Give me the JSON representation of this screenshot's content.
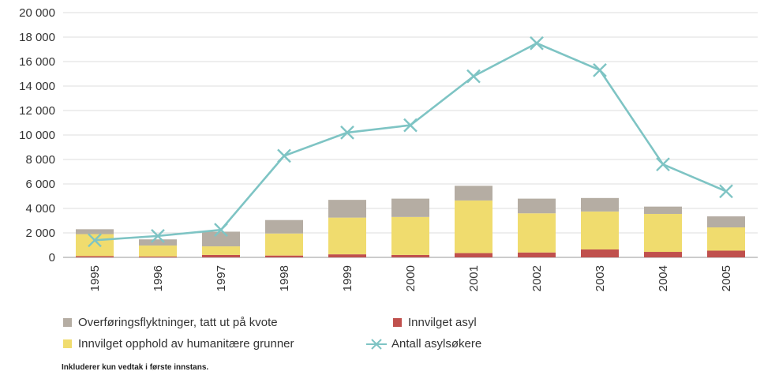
{
  "chart_data": {
    "type": "bar",
    "stacked": true,
    "categories": [
      "1995",
      "1996",
      "1997",
      "1998",
      "1999",
      "2000",
      "2001",
      "2002",
      "2003",
      "2004",
      "2005"
    ],
    "series": [
      {
        "name": "Innvilget asyl",
        "type": "bar",
        "color": "#c0504d",
        "values": [
          100,
          70,
          200,
          150,
          250,
          200,
          350,
          400,
          650,
          450,
          550
        ]
      },
      {
        "name": "Innvilget opphold av humanitære grunner",
        "type": "bar",
        "color": "#f0dc6e",
        "values": [
          1800,
          900,
          700,
          1800,
          3000,
          3100,
          4300,
          3200,
          3100,
          3100,
          1900
        ]
      },
      {
        "name": "Overføringsflyktninger, tatt ut på kvote",
        "type": "bar",
        "color": "#b5ada3",
        "values": [
          400,
          500,
          1200,
          1100,
          1450,
          1500,
          1200,
          1200,
          1100,
          600,
          900
        ]
      },
      {
        "name": "Antall asylsøkere",
        "type": "line",
        "color": "#7ec4c4",
        "values": [
          1400,
          1750,
          2250,
          8300,
          10200,
          10800,
          14800,
          17500,
          15300,
          7600,
          5400
        ]
      }
    ],
    "yticks": [
      "0",
      "2 000",
      "4 000",
      "6 000",
      "8 000",
      "10 000",
      "12 000",
      "14 000",
      "16 000",
      "18 000",
      "20 000"
    ],
    "ylim": [
      0,
      20000
    ],
    "grid": true,
    "legend_position": "bottom",
    "title": "",
    "xlabel": "",
    "ylabel": ""
  },
  "legend": {
    "kvote": "Overføringsflyktninger, tatt ut på kvote",
    "humanitaere": "Innvilget opphold av humanitære grunner",
    "asyl": "Innvilget asyl",
    "asylsokere": "Antall asylsøkere"
  },
  "footnote": "Inkluderer kun vedtak i første innstans."
}
